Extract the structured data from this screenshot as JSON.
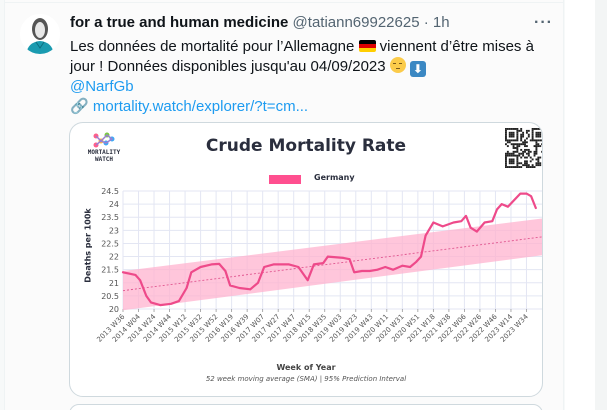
{
  "tweet": {
    "author_name": "for a true and human medicine",
    "author_handle": "@tatiann69922625",
    "separator": "·",
    "time": "1h",
    "more_icon": "ellipsis-icon",
    "more_label": "···",
    "text_part1": "Les données de mortalité pour l’Allemagne ",
    "text_part2": " viennent d’être mises à jour ! Données disponibles jusqu'au 04/09/2023 ",
    "flag_emoji": "german-flag",
    "emoji_face": "relieved-face",
    "emoji_arrow": "⬇",
    "mention": "@NarfGb",
    "link_icon": "🔗",
    "link_text": "mortality.watch/explorer/?t=cm..."
  },
  "card": {
    "logo_text_line1": "MORTALITY",
    "logo_text_line2": "WATCH",
    "qr_icon": "qr-code-icon"
  },
  "colors": {
    "line": "#ee4a8a",
    "band": "#ffb3cf",
    "legend": "#ff4f8f",
    "link": "#1d9bf0",
    "flag": [
      "#000000",
      "#dd0000",
      "#ffce00"
    ]
  },
  "chart_data": {
    "type": "line",
    "title": "Crude Mortality Rate",
    "xlabel": "Week of Year",
    "ylabel": "Deaths per 100k",
    "caption": "52 week moving average (SMA) | 95% Prediction Interval",
    "legend": [
      {
        "name": "Germany",
        "color": "#ff4f8f"
      }
    ],
    "legend_position": "top-center",
    "grid": true,
    "ylim": [
      20,
      24.5
    ],
    "yticks": [
      20,
      20.5,
      21,
      21.5,
      22,
      22.5,
      23,
      23.5,
      24,
      24.5
    ],
    "ytick_labels": [
      "20",
      "20.5",
      "21",
      "21.5",
      "22",
      "22.5",
      "23",
      "23.5",
      "24",
      "24.5"
    ],
    "xtick_labels": [
      "2013 W36",
      "2014 W04",
      "2014 W24",
      "2014 W44",
      "2015 W12",
      "2015 W32",
      "2015 W52",
      "2016 W19",
      "2016 W39",
      "2017 W07",
      "2017 W27",
      "2017 W47",
      "2018 W15",
      "2018 W35",
      "2019 W03",
      "2019 W23",
      "2019 W43",
      "2020 W11",
      "2020 W31",
      "2020 W51",
      "2021 W18",
      "2021 W38",
      "2022 W06",
      "2022 W26",
      "2022 W46",
      "2023 W14",
      "2023 W34"
    ],
    "x_range_tick_index": [
      0,
      27
    ],
    "series": [
      {
        "name": "Germany",
        "x_tick_index": [
          0,
          0.8,
          1.1,
          1.5,
          1.8,
          2.4,
          3.1,
          3.6,
          4.1,
          4.4,
          5.0,
          5.7,
          6.2,
          6.6,
          6.9,
          7.5,
          8.2,
          8.7,
          9.1,
          9.7,
          10.7,
          11.3,
          11.9,
          12.3,
          12.9,
          13.2,
          14.2,
          14.6,
          14.9,
          15.4,
          15.9,
          16.4,
          16.9,
          17.4,
          18.0,
          18.5,
          18.9,
          19.2,
          19.5,
          20.0,
          20.6,
          21.3,
          21.8,
          22.1,
          22.4,
          22.8,
          23.3,
          23.8,
          24.1,
          24.4,
          24.8,
          25.6,
          26.0,
          26.3,
          26.6
        ],
        "values": [
          21.4,
          21.3,
          21.1,
          20.5,
          20.25,
          20.15,
          20.2,
          20.3,
          20.8,
          21.4,
          21.6,
          21.7,
          21.72,
          21.45,
          20.9,
          20.8,
          20.75,
          21.0,
          21.6,
          21.7,
          21.7,
          21.6,
          21.1,
          21.7,
          21.75,
          22.0,
          21.95,
          21.9,
          21.4,
          21.45,
          21.45,
          21.5,
          21.6,
          21.5,
          21.65,
          21.6,
          21.8,
          22.0,
          22.8,
          23.3,
          23.15,
          23.3,
          23.35,
          23.55,
          23.1,
          22.95,
          23.3,
          23.35,
          23.8,
          24.0,
          23.9,
          24.4,
          24.4,
          24.3,
          23.85
        ]
      },
      {
        "name": "Trend (baseline)",
        "x_tick_index": [
          0,
          27
        ],
        "values": [
          20.7,
          22.75
        ]
      }
    ],
    "prediction_interval": {
      "x_tick_index": [
        0,
        27
      ],
      "lower": [
        19.95,
        22.05
      ],
      "upper": [
        21.45,
        23.45
      ]
    }
  }
}
